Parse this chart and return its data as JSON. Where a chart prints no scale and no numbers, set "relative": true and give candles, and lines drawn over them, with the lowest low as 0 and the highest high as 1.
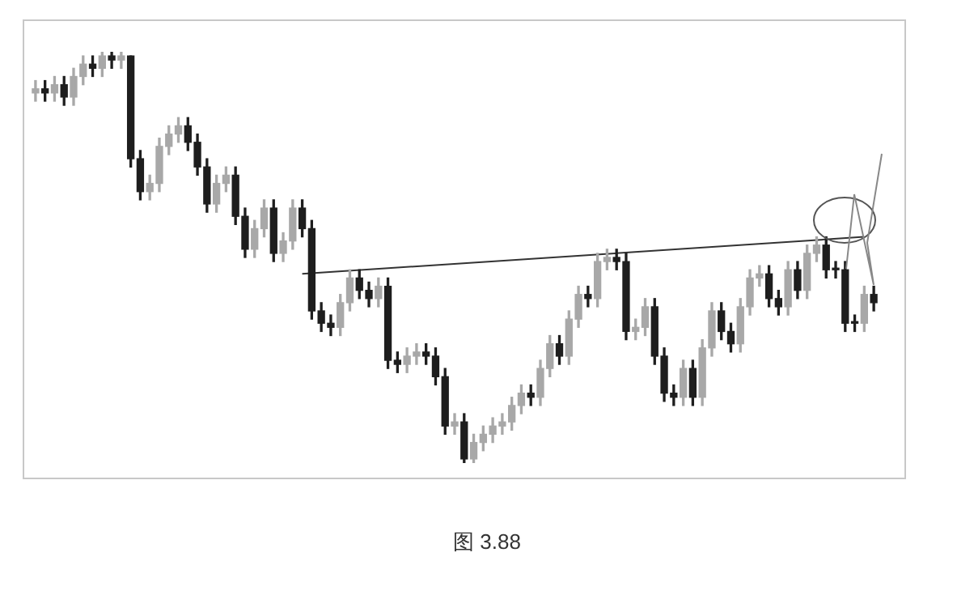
{
  "chart_data": {
    "type": "candlestick",
    "relative": true,
    "tick_labels": false,
    "grid": false,
    "legend": false,
    "colors": [
      "#a8a8a8",
      "#1e1e1e",
      "#a8a8a8",
      "#1e1e1e",
      "#a8a8a8",
      "#a8a8a8",
      "#1e1e1e",
      "#a8a8a8",
      "#1e1e1e",
      "#a8a8a8",
      "#1e1e1e",
      "#1e1e1e",
      "#a8a8a8",
      "#a8a8a8",
      "#a8a8a8",
      "#a8a8a8",
      "#1e1e1e",
      "#1e1e1e",
      "#1e1e1e",
      "#a8a8a8",
      "#a8a8a8",
      "#1e1e1e",
      "#1e1e1e",
      "#a8a8a8",
      "#a8a8a8",
      "#1e1e1e",
      "#a8a8a8",
      "#a8a8a8",
      "#1e1e1e",
      "#1e1e1e",
      "#1e1e1e",
      "#1e1e1e",
      "#a8a8a8",
      "#a8a8a8",
      "#1e1e1e",
      "#1e1e1e",
      "#a8a8a8",
      "#1e1e1e",
      "#1e1e1e",
      "#a8a8a8",
      "#a8a8a8",
      "#1e1e1e",
      "#1e1e1e",
      "#1e1e1e",
      "#a8a8a8",
      "#1e1e1e",
      "#a8a8a8",
      "#a8a8a8",
      "#a8a8a8",
      "#a8a8a8",
      "#a8a8a8",
      "#a8a8a8",
      "#1e1e1e",
      "#a8a8a8",
      "#a8a8a8",
      "#1e1e1e",
      "#a8a8a8",
      "#a8a8a8",
      "#1e1e1e",
      "#a8a8a8",
      "#a8a8a8",
      "#1e1e1e",
      "#1e1e1e",
      "#a8a8a8",
      "#a8a8a8",
      "#1e1e1e",
      "#1e1e1e",
      "#1e1e1e",
      "#a8a8a8",
      "#1e1e1e",
      "#a8a8a8",
      "#a8a8a8",
      "#1e1e1e",
      "#1e1e1e",
      "#a8a8a8",
      "#a8a8a8",
      "#a8a8a8",
      "#1e1e1e",
      "#1e1e1e",
      "#a8a8a8",
      "#1e1e1e",
      "#a8a8a8",
      "#a8a8a8",
      "#1e1e1e",
      "#1e1e1e",
      "#1e1e1e",
      "#1e1e1e",
      "#a8a8a8",
      "#1e1e1e"
    ],
    "categories": [
      null,
      null,
      null,
      null,
      null,
      null,
      null,
      null,
      null,
      null,
      null,
      null,
      null,
      null,
      null,
      null,
      null,
      null,
      null,
      null,
      null,
      null,
      null,
      null,
      null,
      null,
      null,
      null,
      null,
      null,
      null,
      null,
      null,
      null,
      null,
      null,
      null,
      null,
      null,
      null,
      null,
      null,
      null,
      null,
      null,
      null,
      null,
      null,
      null,
      null,
      null,
      null,
      null,
      null,
      null,
      null,
      null,
      null,
      null,
      null,
      null,
      null,
      null,
      null,
      null,
      null,
      null,
      null,
      null,
      null,
      null,
      null,
      null,
      null,
      null,
      null,
      null,
      null,
      null,
      null,
      null,
      null,
      null,
      null,
      null,
      null,
      null,
      null,
      null
    ],
    "ohlc": [
      [
        0.9,
        0.93,
        0.88,
        0.91
      ],
      [
        0.91,
        0.93,
        0.88,
        0.9
      ],
      [
        0.9,
        0.94,
        0.88,
        0.92
      ],
      [
        0.92,
        0.94,
        0.87,
        0.89
      ],
      [
        0.89,
        0.96,
        0.87,
        0.94
      ],
      [
        0.94,
        0.99,
        0.92,
        0.97
      ],
      [
        0.97,
        0.99,
        0.94,
        0.96
      ],
      [
        0.96,
        1,
        0.94,
        0.99
      ],
      [
        0.99,
        1,
        0.96,
        0.98
      ],
      [
        0.98,
        1,
        0.96,
        0.99
      ],
      [
        0.99,
        0.99,
        0.72,
        0.74
      ],
      [
        0.74,
        0.76,
        0.64,
        0.66
      ],
      [
        0.66,
        0.7,
        0.64,
        0.68
      ],
      [
        0.68,
        0.79,
        0.66,
        0.77
      ],
      [
        0.77,
        0.82,
        0.75,
        0.8
      ],
      [
        0.8,
        0.84,
        0.78,
        0.82
      ],
      [
        0.82,
        0.84,
        0.76,
        0.78
      ],
      [
        0.78,
        0.8,
        0.7,
        0.72
      ],
      [
        0.72,
        0.74,
        0.61,
        0.63
      ],
      [
        0.63,
        0.7,
        0.61,
        0.68
      ],
      [
        0.68,
        0.72,
        0.66,
        0.7
      ],
      [
        0.7,
        0.72,
        0.58,
        0.6
      ],
      [
        0.6,
        0.62,
        0.5,
        0.52
      ],
      [
        0.52,
        0.59,
        0.5,
        0.57
      ],
      [
        0.57,
        0.64,
        0.55,
        0.62
      ],
      [
        0.62,
        0.64,
        0.49,
        0.51
      ],
      [
        0.51,
        0.56,
        0.49,
        0.54
      ],
      [
        0.54,
        0.64,
        0.52,
        0.62
      ],
      [
        0.62,
        0.64,
        0.55,
        0.57
      ],
      [
        0.57,
        0.59,
        0.35,
        0.37
      ],
      [
        0.37,
        0.39,
        0.32,
        0.34
      ],
      [
        0.34,
        0.36,
        0.31,
        0.33
      ],
      [
        0.33,
        0.41,
        0.31,
        0.39
      ],
      [
        0.39,
        0.47,
        0.37,
        0.45
      ],
      [
        0.45,
        0.47,
        0.4,
        0.42
      ],
      [
        0.42,
        0.44,
        0.38,
        0.4
      ],
      [
        0.4,
        0.45,
        0.38,
        0.43
      ],
      [
        0.43,
        0.45,
        0.23,
        0.25
      ],
      [
        0.25,
        0.27,
        0.22,
        0.24
      ],
      [
        0.24,
        0.28,
        0.22,
        0.26
      ],
      [
        0.26,
        0.29,
        0.24,
        0.27
      ],
      [
        0.27,
        0.29,
        0.24,
        0.26
      ],
      [
        0.26,
        0.28,
        0.19,
        0.21
      ],
      [
        0.21,
        0.23,
        0.07,
        0.09
      ],
      [
        0.09,
        0.12,
        0.07,
        0.1
      ],
      [
        0.1,
        0.12,
        0,
        0.01
      ],
      [
        0.01,
        0.07,
        0,
        0.05
      ],
      [
        0.05,
        0.09,
        0.03,
        0.07
      ],
      [
        0.07,
        0.11,
        0.05,
        0.09
      ],
      [
        0.09,
        0.12,
        0.07,
        0.1
      ],
      [
        0.1,
        0.16,
        0.08,
        0.14
      ],
      [
        0.14,
        0.19,
        0.12,
        0.17
      ],
      [
        0.17,
        0.19,
        0.14,
        0.16
      ],
      [
        0.16,
        0.25,
        0.14,
        0.23
      ],
      [
        0.23,
        0.31,
        0.21,
        0.29
      ],
      [
        0.29,
        0.31,
        0.24,
        0.26
      ],
      [
        0.26,
        0.37,
        0.24,
        0.35
      ],
      [
        0.35,
        0.43,
        0.33,
        0.41
      ],
      [
        0.41,
        0.43,
        0.38,
        0.4
      ],
      [
        0.4,
        0.51,
        0.38,
        0.49
      ],
      [
        0.49,
        0.52,
        0.47,
        0.5
      ],
      [
        0.5,
        0.52,
        0.47,
        0.49
      ],
      [
        0.49,
        0.51,
        0.3,
        0.32
      ],
      [
        0.32,
        0.35,
        0.3,
        0.33
      ],
      [
        0.33,
        0.4,
        0.31,
        0.38
      ],
      [
        0.38,
        0.4,
        0.24,
        0.26
      ],
      [
        0.26,
        0.28,
        0.15,
        0.17
      ],
      [
        0.17,
        0.19,
        0.14,
        0.16
      ],
      [
        0.16,
        0.25,
        0.14,
        0.23
      ],
      [
        0.23,
        0.25,
        0.14,
        0.16
      ],
      [
        0.16,
        0.3,
        0.14,
        0.28
      ],
      [
        0.28,
        0.39,
        0.26,
        0.37
      ],
      [
        0.37,
        0.39,
        0.3,
        0.32
      ],
      [
        0.32,
        0.34,
        0.27,
        0.29
      ],
      [
        0.29,
        0.4,
        0.27,
        0.38
      ],
      [
        0.38,
        0.47,
        0.36,
        0.45
      ],
      [
        0.45,
        0.48,
        0.43,
        0.46
      ],
      [
        0.46,
        0.48,
        0.38,
        0.4
      ],
      [
        0.4,
        0.42,
        0.36,
        0.38
      ],
      [
        0.38,
        0.49,
        0.36,
        0.47
      ],
      [
        0.47,
        0.49,
        0.4,
        0.42
      ],
      [
        0.42,
        0.53,
        0.4,
        0.51
      ],
      [
        0.51,
        0.55,
        0.49,
        0.53
      ],
      [
        0.53,
        0.55,
        0.45,
        0.47
      ],
      [
        0.47,
        0.49,
        0.45,
        0.47
      ],
      [
        0.47,
        0.49,
        0.32,
        0.34
      ],
      [
        0.34,
        0.36,
        0.32,
        0.34
      ],
      [
        0.34,
        0.43,
        0.32,
        0.41
      ],
      [
        0.41,
        0.43,
        0.37,
        0.39
      ]
    ],
    "series": [
      {
        "type": "line",
        "color": "#333333",
        "values": [
          null,
          null,
          null,
          null,
          null,
          null,
          null,
          null,
          null,
          null,
          null,
          null,
          null,
          null,
          null,
          null,
          null,
          null,
          null,
          null,
          null,
          null,
          null,
          null,
          null,
          null,
          null,
          null,
          0.46,
          null,
          null,
          null,
          null,
          null,
          null,
          null,
          null,
          null,
          null,
          null,
          null,
          null,
          null,
          null,
          null,
          null,
          null,
          null,
          null,
          null,
          null,
          null,
          null,
          null,
          null,
          null,
          null,
          null,
          null,
          null,
          null,
          null,
          null,
          null,
          null,
          null,
          null,
          null,
          null,
          null,
          null,
          null,
          null,
          null,
          null,
          null,
          null,
          null,
          null,
          null,
          null,
          null,
          null,
          null,
          null,
          null,
          null,
          0.55,
          null
        ]
      }
    ],
    "annotations": [
      "图 3.88"
    ]
  }
}
